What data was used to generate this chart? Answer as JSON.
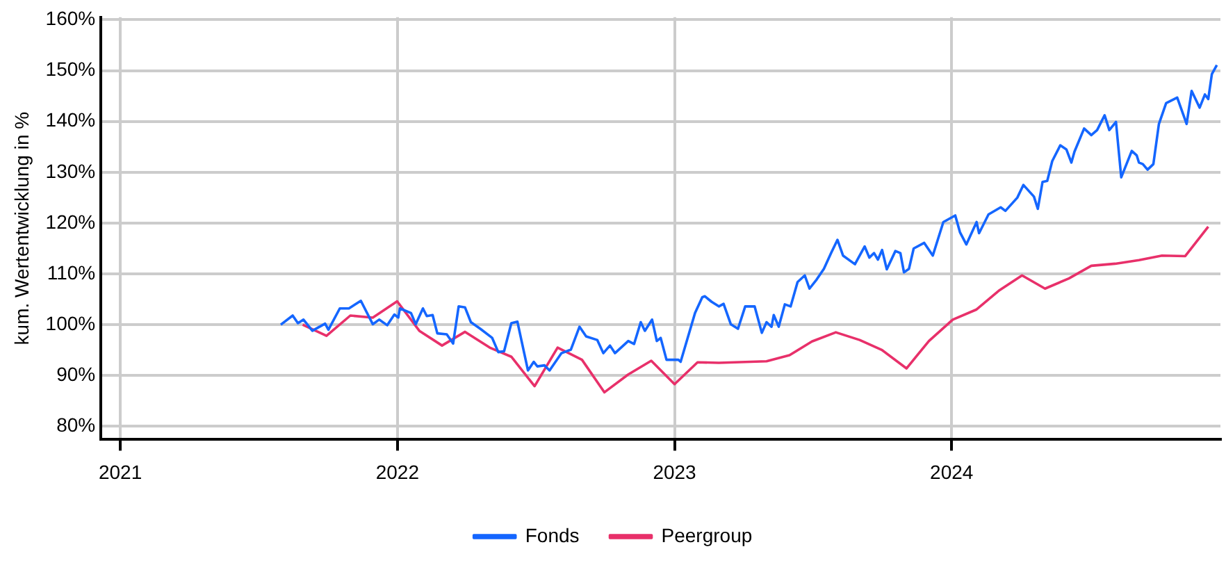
{
  "chart_data": {
    "type": "line",
    "ylabel": "kum. Wertentwicklung in %",
    "xlim": [
      2020.93,
      2024.97
    ],
    "ylim": [
      77.4,
      160.5
    ],
    "xticks": [
      2021,
      2022,
      2023,
      2024
    ],
    "yticks": [
      {
        "value": 80,
        "label": "80%"
      },
      {
        "value": 90,
        "label": "90%"
      },
      {
        "value": 100,
        "label": "100%"
      },
      {
        "value": 110,
        "label": "110%"
      },
      {
        "value": 120,
        "label": "120%"
      },
      {
        "value": 130,
        "label": "130%"
      },
      {
        "value": 140,
        "label": "140%"
      },
      {
        "value": 150,
        "label": "150%"
      },
      {
        "value": 160,
        "label": "160%"
      }
    ],
    "grid": true,
    "legend": "bottom",
    "series": [
      {
        "name": "Fonds",
        "color": "#1466ff",
        "x": [
          2021.579,
          2021.622,
          2021.641,
          2021.661,
          2021.693,
          2021.739,
          2021.751,
          2021.792,
          2021.825,
          2021.868,
          2021.911,
          2021.934,
          2021.963,
          2021.989,
          2022.003,
          2022.009,
          2022.049,
          2022.066,
          2022.092,
          2022.106,
          2022.127,
          2022.144,
          2022.178,
          2022.201,
          2022.221,
          2022.244,
          2022.265,
          2022.299,
          2022.342,
          2022.364,
          2022.385,
          2022.411,
          2022.433,
          2022.471,
          2022.492,
          2022.505,
          2022.531,
          2022.549,
          2022.592,
          2022.626,
          2022.657,
          2022.681,
          2022.721,
          2022.743,
          2022.767,
          2022.785,
          2022.833,
          2022.854,
          2022.878,
          2022.893,
          2022.919,
          2022.936,
          2022.95,
          2022.971,
          2023.014,
          2023.022,
          2023.074,
          2023.1,
          2023.109,
          2023.134,
          2023.16,
          2023.177,
          2023.203,
          2023.229,
          2023.255,
          2023.289,
          2023.315,
          2023.332,
          2023.35,
          2023.358,
          2023.376,
          2023.398,
          2023.419,
          2023.444,
          2023.47,
          2023.487,
          2023.513,
          2023.539,
          2023.565,
          2023.588,
          2023.608,
          2023.651,
          2023.686,
          2023.703,
          2023.72,
          2023.734,
          2023.749,
          2023.766,
          2023.797,
          2023.815,
          2023.828,
          2023.846,
          2023.863,
          2023.901,
          2023.932,
          2023.97,
          2024.013,
          2024.03,
          2024.053,
          2024.09,
          2024.099,
          2024.133,
          2024.177,
          2024.194,
          2024.237,
          2024.259,
          2024.297,
          2024.311,
          2024.328,
          2024.345,
          2024.363,
          2024.392,
          2024.414,
          2024.432,
          2024.443,
          2024.478,
          2024.504,
          2024.525,
          2024.552,
          2024.569,
          2024.593,
          2024.612,
          2024.65,
          2024.668,
          2024.676,
          2024.69,
          2024.707,
          2024.728,
          2024.748,
          2024.774,
          2024.814,
          2024.848,
          2024.866,
          2024.895,
          2024.914,
          2024.926,
          2024.939,
          2024.957
        ],
        "values": [
          100.0,
          101.8,
          100.3,
          101.0,
          98.8,
          100.2,
          99.0,
          103.2,
          103.2,
          104.7,
          100.1,
          101.0,
          99.9,
          102.0,
          101.4,
          103.2,
          102.3,
          100.1,
          103.2,
          101.7,
          101.9,
          98.3,
          98.1,
          96.3,
          103.6,
          103.4,
          100.5,
          99.2,
          97.4,
          94.6,
          94.8,
          100.3,
          100.6,
          91.0,
          92.7,
          91.8,
          92.0,
          91.0,
          94.4,
          95.1,
          99.6,
          97.7,
          97.0,
          94.4,
          95.9,
          94.4,
          96.8,
          96.2,
          100.5,
          98.8,
          101.0,
          96.8,
          97.4,
          93.1,
          93.1,
          92.7,
          102.3,
          105.4,
          105.6,
          104.5,
          103.6,
          104.1,
          100.1,
          99.2,
          103.6,
          103.6,
          98.4,
          100.5,
          99.6,
          101.9,
          99.6,
          104.0,
          103.6,
          108.4,
          109.7,
          107.1,
          108.9,
          111.0,
          114.1,
          116.7,
          113.6,
          111.9,
          115.4,
          113.2,
          114.1,
          112.8,
          114.7,
          110.9,
          114.5,
          114.1,
          110.3,
          111.0,
          115.0,
          116.1,
          113.6,
          120.2,
          121.5,
          118.2,
          115.8,
          120.2,
          118.0,
          121.7,
          123.1,
          122.4,
          125.0,
          127.5,
          125.2,
          122.8,
          128.1,
          128.3,
          132.2,
          135.3,
          134.5,
          131.9,
          134.0,
          138.6,
          137.3,
          138.3,
          141.2,
          138.3,
          139.9,
          129.0,
          134.2,
          133.3,
          131.9,
          131.6,
          130.5,
          131.6,
          139.5,
          143.6,
          144.7,
          139.5,
          146.0,
          142.7,
          145.3,
          144.4,
          149.3,
          151.1
        ]
      },
      {
        "name": "Peergroup",
        "color": "#e8306a",
        "x": [
          2021.658,
          2021.744,
          2021.83,
          2021.911,
          2021.999,
          2022.079,
          2022.161,
          2022.244,
          2022.333,
          2022.411,
          2022.495,
          2022.578,
          2022.666,
          2022.747,
          2022.833,
          2022.916,
          2023.0,
          2023.083,
          2023.16,
          2023.332,
          2023.415,
          2023.496,
          2023.582,
          2023.668,
          2023.749,
          2023.837,
          2023.918,
          2024.004,
          2024.09,
          2024.173,
          2024.254,
          2024.337,
          2024.423,
          2024.504,
          2024.59,
          2024.676,
          2024.759,
          2024.843,
          2024.926
        ],
        "values": [
          100.0,
          97.8,
          101.8,
          101.4,
          104.6,
          98.8,
          95.9,
          98.6,
          95.5,
          93.7,
          87.9,
          95.5,
          93.1,
          86.7,
          90.2,
          92.9,
          88.3,
          92.6,
          92.5,
          92.8,
          94.0,
          96.7,
          98.5,
          97.0,
          95.0,
          91.4,
          96.8,
          101.0,
          103.0,
          106.8,
          109.7,
          107.1,
          109.1,
          111.6,
          112.0,
          112.7,
          113.6,
          113.5,
          119.3
        ]
      }
    ]
  }
}
